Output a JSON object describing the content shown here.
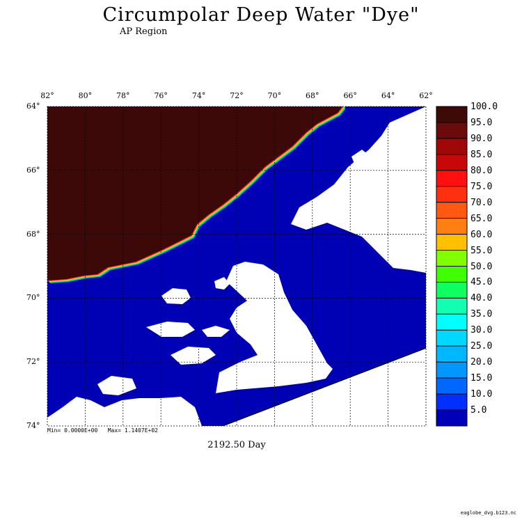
{
  "title": "Circumpolar Deep Water \"Dye\"",
  "subtitle": "AP Region",
  "longitude_labels": [
    "82°",
    "80°",
    "78°",
    "76°",
    "74°",
    "72°",
    "70°",
    "68°",
    "66°",
    "64°",
    "62°"
  ],
  "latitude_labels": [
    "64°",
    "66°",
    "68°",
    "70°",
    "72°",
    "74°"
  ],
  "stats": {
    "min_label": "Min=",
    "min_value": "0.0000E+00",
    "max_label": "Max=",
    "max_value": "1.1407E+02"
  },
  "time_label": "2192.50 Day",
  "filename": "eaglobe_dvg.b123.nc",
  "colorbar": {
    "labels": [
      "100.0",
      "95.0",
      "90.0",
      "85.0",
      "80.0",
      "75.0",
      "70.0",
      "65.0",
      "60.0",
      "55.0",
      "50.0",
      "45.0",
      "40.0",
      "35.0",
      "30.0",
      "25.0",
      "20.0",
      "15.0",
      "10.0",
      "5.0"
    ],
    "colors": [
      "#3d0a08",
      "#6a0a0a",
      "#a00808",
      "#c80808",
      "#ff1010",
      "#ff3010",
      "#ff5a10",
      "#ff8010",
      "#ffc000",
      "#80ff00",
      "#40ff00",
      "#10ff60",
      "#10ffb0",
      "#00ffff",
      "#00d8ff",
      "#00b8ff",
      "#0098ff",
      "#0068ff",
      "#0030ff",
      "#0000b8"
    ]
  },
  "map_colors": {
    "open_ocean_dye": "#0000b4",
    "deep_water_dye": "#3d0808",
    "land": "#ffffff",
    "front_1": "#ff2020",
    "front_2": "#ffd000",
    "front_3": "#00ff80",
    "front_4": "#00a0ff"
  }
}
